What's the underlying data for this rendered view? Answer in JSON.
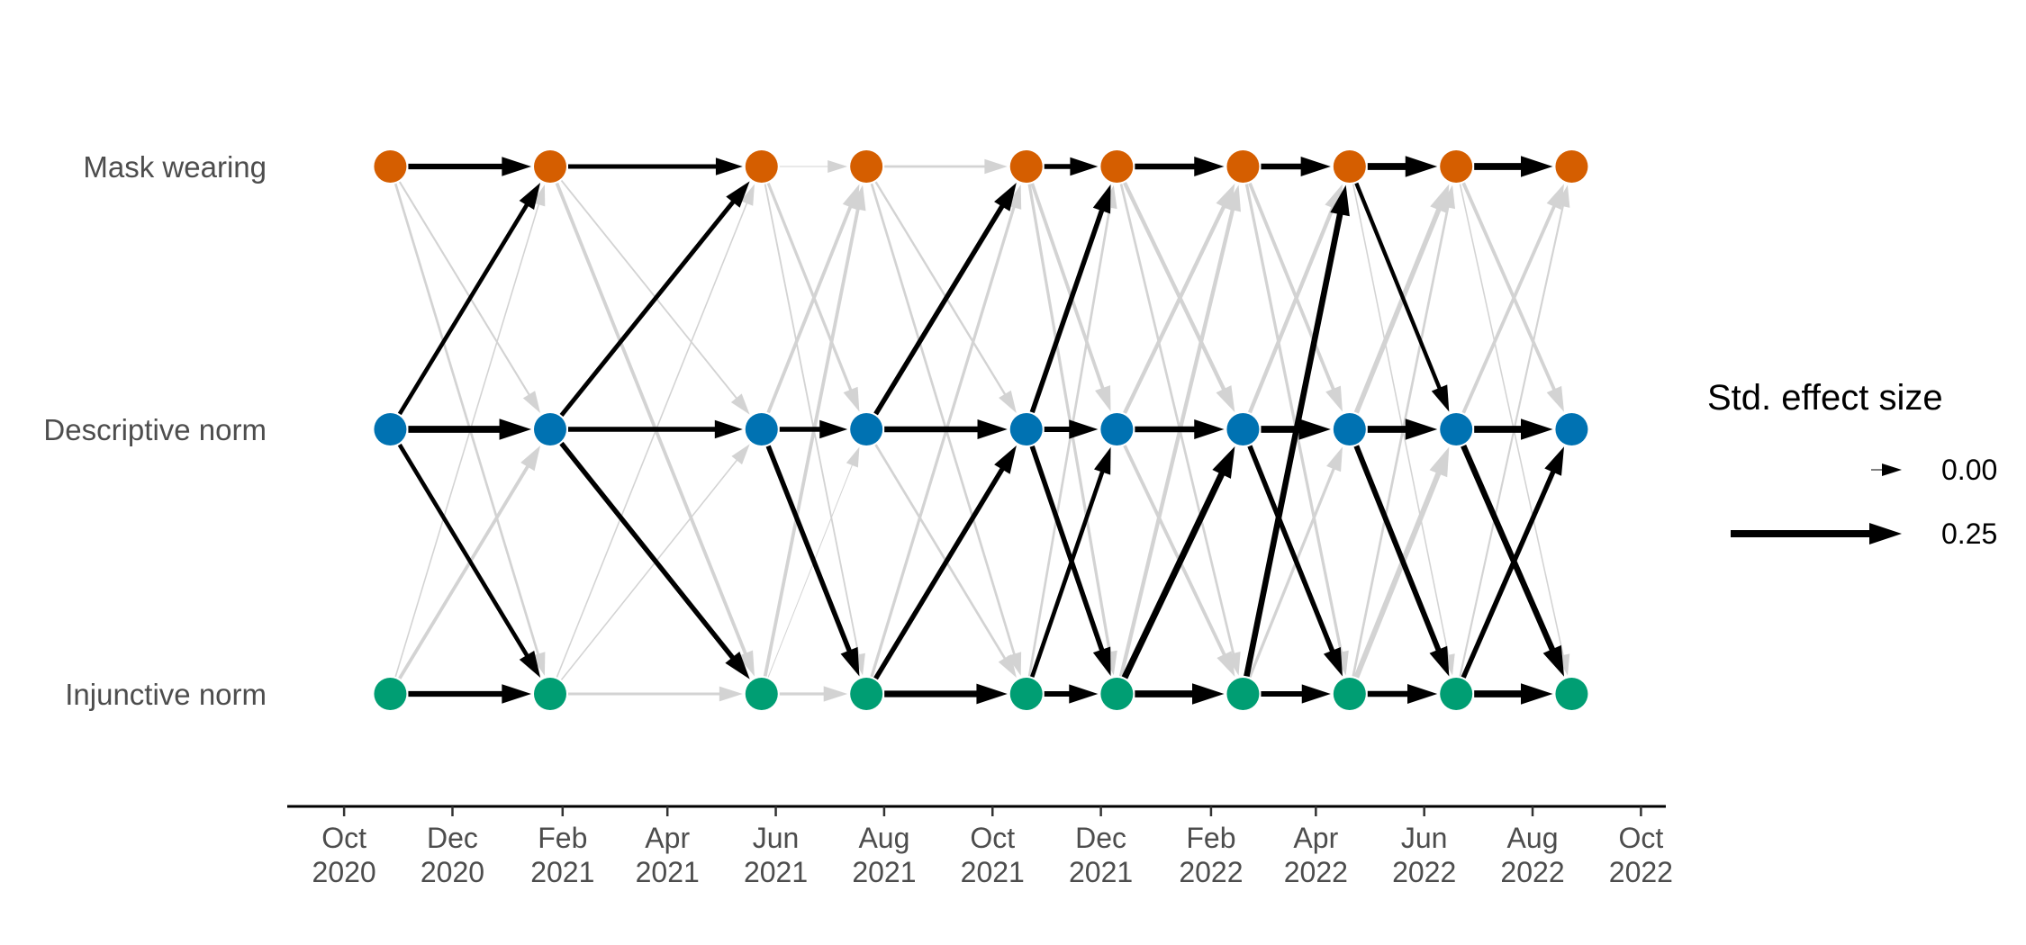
{
  "chart_data": {
    "type": "network",
    "title": "",
    "xlabel": "",
    "ylabel": "",
    "xlim": [
      "2020-08-30",
      "2022-10-15"
    ],
    "grid": false,
    "x_ticks": [
      {
        "date": "2020-10-01",
        "label": [
          "Oct",
          "2020"
        ]
      },
      {
        "date": "2020-12-01",
        "label": [
          "Dec",
          "2020"
        ]
      },
      {
        "date": "2021-02-01",
        "label": [
          "Feb",
          "2021"
        ]
      },
      {
        "date": "2021-04-01",
        "label": [
          "Apr",
          "2021"
        ]
      },
      {
        "date": "2021-06-01",
        "label": [
          "Jun",
          "2021"
        ]
      },
      {
        "date": "2021-08-01",
        "label": [
          "Aug",
          "2021"
        ]
      },
      {
        "date": "2021-10-01",
        "label": [
          "Oct",
          "2021"
        ]
      },
      {
        "date": "2021-12-01",
        "label": [
          "Dec",
          "2021"
        ]
      },
      {
        "date": "2022-02-01",
        "label": [
          "Feb",
          "2022"
        ]
      },
      {
        "date": "2022-04-01",
        "label": [
          "Apr",
          "2022"
        ]
      },
      {
        "date": "2022-06-01",
        "label": [
          "Jun",
          "2022"
        ]
      },
      {
        "date": "2022-08-01",
        "label": [
          "Aug",
          "2022"
        ]
      },
      {
        "date": "2022-10-01",
        "label": [
          "Oct",
          "2022"
        ]
      }
    ],
    "variables": [
      {
        "id": "mask",
        "label": "Mask wearing",
        "color": "#D55E00"
      },
      {
        "id": "desc",
        "label": "Descriptive norm",
        "color": "#0072B2"
      },
      {
        "id": "inj",
        "label": "Injunctive norm",
        "color": "#009E73"
      }
    ],
    "waves": [
      "2020-10-27",
      "2021-01-25",
      "2021-05-24",
      "2021-07-22",
      "2021-10-20",
      "2021-12-10",
      "2022-02-19",
      "2022-04-20",
      "2022-06-19",
      "2022-08-23"
    ],
    "significant_color": "#000000",
    "nonsignificant_color": "#d3d3d3",
    "edges": [
      {
        "w": 0,
        "from": "mask",
        "to": "mask",
        "b": 0.19,
        "sig": true
      },
      {
        "w": 0,
        "from": "mask",
        "to": "desc",
        "b": 0.04,
        "sig": false
      },
      {
        "w": 0,
        "from": "mask",
        "to": "inj",
        "b": 0.06,
        "sig": false
      },
      {
        "w": 0,
        "from": "desc",
        "to": "mask",
        "b": 0.13,
        "sig": true
      },
      {
        "w": 0,
        "from": "desc",
        "to": "desc",
        "b": 0.24,
        "sig": true
      },
      {
        "w": 0,
        "from": "desc",
        "to": "inj",
        "b": 0.13,
        "sig": true
      },
      {
        "w": 0,
        "from": "inj",
        "to": "mask",
        "b": 0.02,
        "sig": false
      },
      {
        "w": 0,
        "from": "inj",
        "to": "desc",
        "b": 0.1,
        "sig": false
      },
      {
        "w": 0,
        "from": "inj",
        "to": "inj",
        "b": 0.19,
        "sig": true
      },
      {
        "w": 1,
        "from": "mask",
        "to": "mask",
        "b": 0.14,
        "sig": true
      },
      {
        "w": 1,
        "from": "mask",
        "to": "desc",
        "b": 0.03,
        "sig": false
      },
      {
        "w": 1,
        "from": "mask",
        "to": "inj",
        "b": 0.1,
        "sig": false
      },
      {
        "w": 1,
        "from": "desc",
        "to": "mask",
        "b": 0.14,
        "sig": true
      },
      {
        "w": 1,
        "from": "desc",
        "to": "desc",
        "b": 0.16,
        "sig": true
      },
      {
        "w": 1,
        "from": "desc",
        "to": "inj",
        "b": 0.16,
        "sig": true
      },
      {
        "w": 1,
        "from": "inj",
        "to": "mask",
        "b": 0.02,
        "sig": false
      },
      {
        "w": 1,
        "from": "inj",
        "to": "desc",
        "b": 0.02,
        "sig": false
      },
      {
        "w": 1,
        "from": "inj",
        "to": "inj",
        "b": 0.07,
        "sig": false
      },
      {
        "w": 2,
        "from": "mask",
        "to": "mask",
        "b": 0.0,
        "sig": false
      },
      {
        "w": 2,
        "from": "mask",
        "to": "desc",
        "b": 0.08,
        "sig": false
      },
      {
        "w": 2,
        "from": "mask",
        "to": "inj",
        "b": 0.03,
        "sig": false
      },
      {
        "w": 2,
        "from": "desc",
        "to": "mask",
        "b": 0.1,
        "sig": false
      },
      {
        "w": 2,
        "from": "desc",
        "to": "desc",
        "b": 0.16,
        "sig": true
      },
      {
        "w": 2,
        "from": "desc",
        "to": "inj",
        "b": 0.16,
        "sig": true
      },
      {
        "w": 2,
        "from": "inj",
        "to": "mask",
        "b": 0.1,
        "sig": false
      },
      {
        "w": 2,
        "from": "inj",
        "to": "desc",
        "b": 0.0,
        "sig": false
      },
      {
        "w": 2,
        "from": "inj",
        "to": "inj",
        "b": 0.08,
        "sig": false
      },
      {
        "w": 3,
        "from": "mask",
        "to": "mask",
        "b": 0.06,
        "sig": false
      },
      {
        "w": 3,
        "from": "mask",
        "to": "desc",
        "b": 0.05,
        "sig": false
      },
      {
        "w": 3,
        "from": "mask",
        "to": "inj",
        "b": 0.06,
        "sig": false
      },
      {
        "w": 3,
        "from": "desc",
        "to": "mask",
        "b": 0.16,
        "sig": true
      },
      {
        "w": 3,
        "from": "desc",
        "to": "desc",
        "b": 0.2,
        "sig": true
      },
      {
        "w": 3,
        "from": "desc",
        "to": "inj",
        "b": 0.06,
        "sig": false
      },
      {
        "w": 3,
        "from": "inj",
        "to": "mask",
        "b": 0.08,
        "sig": false
      },
      {
        "w": 3,
        "from": "inj",
        "to": "desc",
        "b": 0.16,
        "sig": true
      },
      {
        "w": 3,
        "from": "inj",
        "to": "inj",
        "b": 0.22,
        "sig": true
      },
      {
        "w": 4,
        "from": "mask",
        "to": "mask",
        "b": 0.16,
        "sig": true
      },
      {
        "w": 4,
        "from": "mask",
        "to": "desc",
        "b": 0.1,
        "sig": false
      },
      {
        "w": 4,
        "from": "mask",
        "to": "inj",
        "b": 0.08,
        "sig": false
      },
      {
        "w": 4,
        "from": "desc",
        "to": "mask",
        "b": 0.16,
        "sig": true
      },
      {
        "w": 4,
        "from": "desc",
        "to": "desc",
        "b": 0.18,
        "sig": true
      },
      {
        "w": 4,
        "from": "desc",
        "to": "inj",
        "b": 0.16,
        "sig": true
      },
      {
        "w": 4,
        "from": "inj",
        "to": "mask",
        "b": 0.06,
        "sig": false
      },
      {
        "w": 4,
        "from": "inj",
        "to": "desc",
        "b": 0.13,
        "sig": true
      },
      {
        "w": 4,
        "from": "inj",
        "to": "inj",
        "b": 0.18,
        "sig": true
      },
      {
        "w": 5,
        "from": "mask",
        "to": "mask",
        "b": 0.2,
        "sig": true
      },
      {
        "w": 5,
        "from": "mask",
        "to": "desc",
        "b": 0.12,
        "sig": false
      },
      {
        "w": 5,
        "from": "mask",
        "to": "inj",
        "b": 0.06,
        "sig": false
      },
      {
        "w": 5,
        "from": "desc",
        "to": "mask",
        "b": 0.12,
        "sig": false
      },
      {
        "w": 5,
        "from": "desc",
        "to": "desc",
        "b": 0.2,
        "sig": true
      },
      {
        "w": 5,
        "from": "desc",
        "to": "inj",
        "b": 0.1,
        "sig": false
      },
      {
        "w": 5,
        "from": "inj",
        "to": "mask",
        "b": 0.12,
        "sig": false
      },
      {
        "w": 5,
        "from": "inj",
        "to": "desc",
        "b": 0.22,
        "sig": true
      },
      {
        "w": 5,
        "from": "inj",
        "to": "inj",
        "b": 0.24,
        "sig": true
      },
      {
        "w": 6,
        "from": "mask",
        "to": "mask",
        "b": 0.2,
        "sig": true
      },
      {
        "w": 6,
        "from": "mask",
        "to": "desc",
        "b": 0.1,
        "sig": false
      },
      {
        "w": 6,
        "from": "mask",
        "to": "inj",
        "b": 0.08,
        "sig": false
      },
      {
        "w": 6,
        "from": "desc",
        "to": "mask",
        "b": 0.12,
        "sig": false
      },
      {
        "w": 6,
        "from": "desc",
        "to": "desc",
        "b": 0.24,
        "sig": true
      },
      {
        "w": 6,
        "from": "desc",
        "to": "inj",
        "b": 0.16,
        "sig": true
      },
      {
        "w": 6,
        "from": "inj",
        "to": "mask",
        "b": 0.2,
        "sig": true
      },
      {
        "w": 6,
        "from": "inj",
        "to": "desc",
        "b": 0.08,
        "sig": false
      },
      {
        "w": 6,
        "from": "inj",
        "to": "inj",
        "b": 0.18,
        "sig": true
      },
      {
        "w": 7,
        "from": "mask",
        "to": "mask",
        "b": 0.24,
        "sig": true
      },
      {
        "w": 7,
        "from": "mask",
        "to": "desc",
        "b": 0.12,
        "sig": true
      },
      {
        "w": 7,
        "from": "mask",
        "to": "inj",
        "b": 0.02,
        "sig": false
      },
      {
        "w": 7,
        "from": "desc",
        "to": "mask",
        "b": 0.16,
        "sig": false
      },
      {
        "w": 7,
        "from": "desc",
        "to": "desc",
        "b": 0.24,
        "sig": true
      },
      {
        "w": 7,
        "from": "desc",
        "to": "inj",
        "b": 0.18,
        "sig": true
      },
      {
        "w": 7,
        "from": "inj",
        "to": "mask",
        "b": 0.06,
        "sig": false
      },
      {
        "w": 7,
        "from": "inj",
        "to": "desc",
        "b": 0.18,
        "sig": false
      },
      {
        "w": 7,
        "from": "inj",
        "to": "inj",
        "b": 0.2,
        "sig": true
      },
      {
        "w": 8,
        "from": "mask",
        "to": "mask",
        "b": 0.24,
        "sig": true
      },
      {
        "w": 8,
        "from": "mask",
        "to": "desc",
        "b": 0.1,
        "sig": false
      },
      {
        "w": 8,
        "from": "mask",
        "to": "inj",
        "b": 0.02,
        "sig": false
      },
      {
        "w": 8,
        "from": "desc",
        "to": "mask",
        "b": 0.1,
        "sig": false
      },
      {
        "w": 8,
        "from": "desc",
        "to": "desc",
        "b": 0.24,
        "sig": true
      },
      {
        "w": 8,
        "from": "desc",
        "to": "inj",
        "b": 0.2,
        "sig": true
      },
      {
        "w": 8,
        "from": "inj",
        "to": "mask",
        "b": 0.04,
        "sig": false
      },
      {
        "w": 8,
        "from": "inj",
        "to": "desc",
        "b": 0.16,
        "sig": true
      },
      {
        "w": 8,
        "from": "inj",
        "to": "inj",
        "b": 0.24,
        "sig": true
      }
    ],
    "legend": {
      "title": "Std. effect size",
      "position": "right",
      "entries": [
        {
          "label": "0.00",
          "b": 0.0
        },
        {
          "label": "0.25",
          "b": 0.25
        }
      ]
    }
  }
}
